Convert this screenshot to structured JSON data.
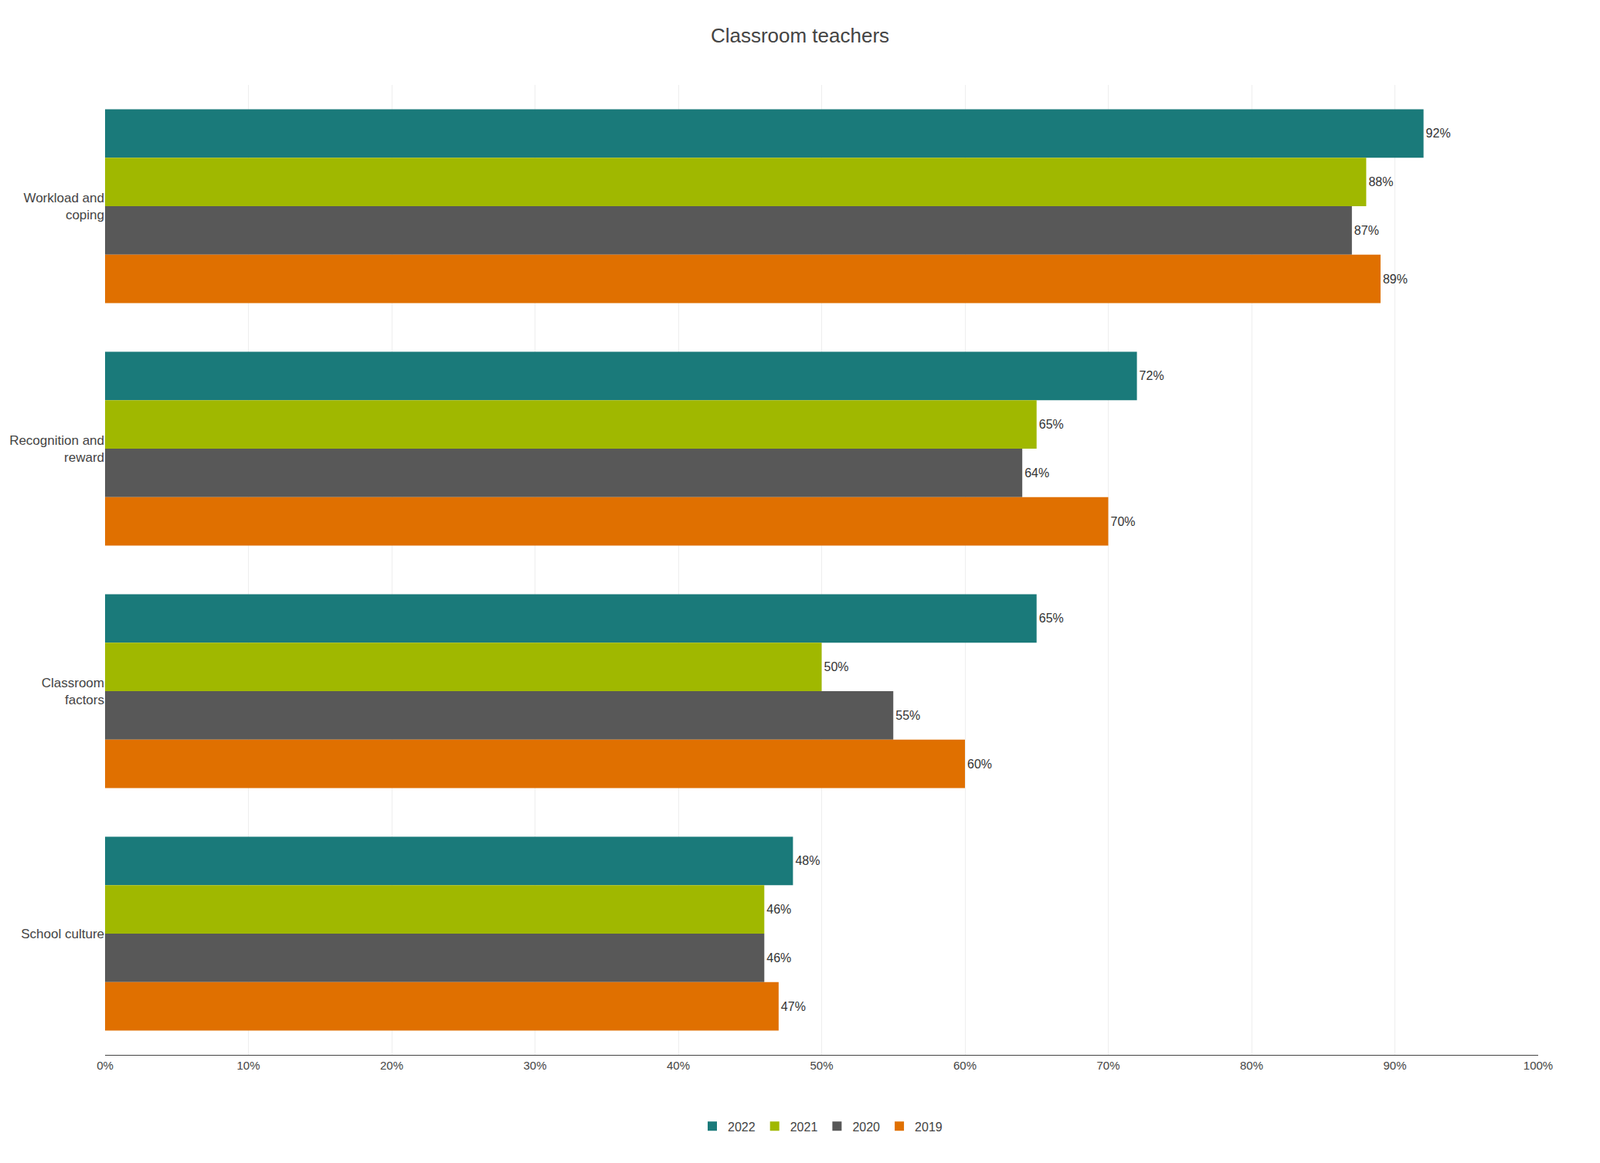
{
  "chart_data": {
    "type": "bar",
    "orientation": "horizontal",
    "title": "Classroom teachers",
    "categories": [
      "Workload and\ncoping",
      "Recognition and\nreward",
      "Classroom\nfactors",
      "School culture"
    ],
    "series": [
      {
        "name": "2022",
        "color": "#1a7a7a",
        "values": [
          92,
          72,
          65,
          48
        ],
        "value_labels": [
          "92%",
          "72%",
          "65%",
          "48%"
        ]
      },
      {
        "name": "2021",
        "color": "#a0b800",
        "values": [
          88,
          65,
          50,
          46
        ],
        "value_labels": [
          "88%",
          "65%",
          "50%",
          "46%"
        ]
      },
      {
        "name": "2020",
        "color": "#585858",
        "values": [
          87,
          64,
          55,
          46
        ],
        "value_labels": [
          "87%",
          "64%",
          "55%",
          "46%"
        ]
      },
      {
        "name": "2019",
        "color": "#e07000",
        "values": [
          89,
          70,
          60,
          47
        ],
        "value_labels": [
          "89%",
          "70%",
          "60%",
          "47%"
        ]
      }
    ],
    "xlim": [
      0,
      100
    ],
    "xticks": [
      {
        "value": 0,
        "label": "0%"
      },
      {
        "value": 10,
        "label": "10%"
      },
      {
        "value": 20,
        "label": "20%"
      },
      {
        "value": 30,
        "label": "30%"
      },
      {
        "value": 40,
        "label": "40%"
      },
      {
        "value": 50,
        "label": "50%"
      },
      {
        "value": 60,
        "label": "60%"
      },
      {
        "value": 70,
        "label": "70%"
      },
      {
        "value": 80,
        "label": "80%"
      },
      {
        "value": 90,
        "label": "90%"
      },
      {
        "value": 100,
        "label": "100%"
      }
    ],
    "grid": true,
    "data_labels": true,
    "legend": "bottom"
  }
}
